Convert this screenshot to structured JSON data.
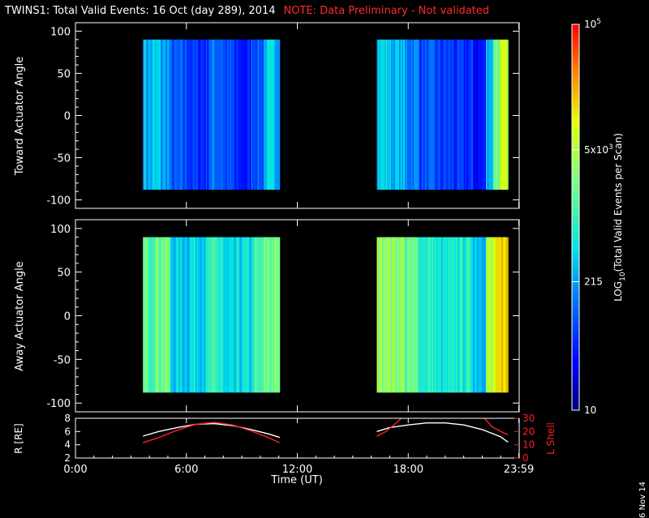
{
  "header": {
    "title": "TWINS1: Total Valid Events: 16 Oct (day 289), 2014",
    "note": "NOTE: Data Preliminary - Not validated"
  },
  "footer": {
    "date_stamp": "6 Nov 14"
  },
  "colors": {
    "background": "#000000",
    "axes": "#ffffff",
    "note": "#ff2a2a",
    "lshell": "#ff2020",
    "radius": "#ffffff"
  },
  "chart_data": [
    {
      "type": "heatmap",
      "title": "",
      "ylabel": "Toward Actuator Angle",
      "ylim": [
        -110,
        110
      ],
      "yticks": [
        100,
        50,
        0,
        -50,
        -100
      ],
      "xlim": [
        0,
        24
      ],
      "data_time_ranges": [
        [
          3.65,
          11.05
        ],
        [
          16.3,
          23.4
        ]
      ],
      "angle_range": [
        -88,
        90
      ],
      "segments": [
        {
          "t": [
            3.65,
            3.8
          ],
          "v": 2.6
        },
        {
          "t": [
            3.8,
            4.15
          ],
          "v": 2.4
        },
        {
          "t": [
            4.15,
            4.6
          ],
          "v": 2.5
        },
        {
          "t": [
            4.6,
            5.1
          ],
          "v": 2.35
        },
        {
          "t": [
            5.1,
            6.2
          ],
          "v": 1.9
        },
        {
          "t": [
            6.2,
            7.2
          ],
          "v": 1.75
        },
        {
          "t": [
            7.2,
            8.0
          ],
          "v": 2.1
        },
        {
          "t": [
            8.0,
            8.6
          ],
          "v": 1.85
        },
        {
          "t": [
            8.6,
            9.5
          ],
          "v": 1.6
        },
        {
          "t": [
            9.5,
            10.2
          ],
          "v": 2.0
        },
        {
          "t": [
            10.2,
            11.05
          ],
          "v": 2.5
        },
        {
          "t": [
            16.3,
            17.0
          ],
          "v": 2.6
        },
        {
          "t": [
            17.0,
            17.8
          ],
          "v": 2.45
        },
        {
          "t": [
            17.8,
            18.6
          ],
          "v": 2.2
        },
        {
          "t": [
            18.6,
            19.5
          ],
          "v": 1.9
        },
        {
          "t": [
            19.5,
            20.5
          ],
          "v": 1.8
        },
        {
          "t": [
            20.5,
            21.5
          ],
          "v": 1.7
        },
        {
          "t": [
            21.5,
            22.2
          ],
          "v": 1.55
        },
        {
          "t": [
            22.2,
            22.6
          ],
          "v": 2.5
        },
        {
          "t": [
            22.6,
            23.0
          ],
          "v": 3.4
        },
        {
          "t": [
            23.0,
            23.4
          ],
          "v": 3.75
        }
      ]
    },
    {
      "type": "heatmap",
      "title": "",
      "ylabel": "Away Actuator Angle",
      "ylim": [
        -110,
        110
      ],
      "yticks": [
        100,
        50,
        0,
        -50,
        -100
      ],
      "xlim": [
        0,
        24
      ],
      "data_time_ranges": [
        [
          3.65,
          11.05
        ],
        [
          16.3,
          23.4
        ]
      ],
      "angle_range": [
        -88,
        90
      ],
      "segments": [
        {
          "t": [
            3.65,
            4.2
          ],
          "v": 3.2
        },
        {
          "t": [
            4.2,
            5.1
          ],
          "v": 3.35
        },
        {
          "t": [
            5.1,
            6.2
          ],
          "v": 2.6
        },
        {
          "t": [
            6.2,
            7.2
          ],
          "v": 2.7
        },
        {
          "t": [
            7.2,
            8.0
          ],
          "v": 2.9
        },
        {
          "t": [
            8.0,
            8.7
          ],
          "v": 2.5
        },
        {
          "t": [
            8.7,
            9.6
          ],
          "v": 2.65
        },
        {
          "t": [
            9.6,
            10.2
          ],
          "v": 3.0
        },
        {
          "t": [
            10.2,
            11.05
          ],
          "v": 3.3
        },
        {
          "t": [
            16.3,
            17.0
          ],
          "v": 3.6
        },
        {
          "t": [
            17.0,
            17.8
          ],
          "v": 3.5
        },
        {
          "t": [
            17.8,
            18.6
          ],
          "v": 3.2
        },
        {
          "t": [
            18.6,
            19.5
          ],
          "v": 2.9
        },
        {
          "t": [
            19.5,
            20.5
          ],
          "v": 2.7
        },
        {
          "t": [
            20.5,
            21.5
          ],
          "v": 2.85
        },
        {
          "t": [
            21.5,
            22.2
          ],
          "v": 2.6
        },
        {
          "t": [
            22.2,
            22.6
          ],
          "v": 3.6
        },
        {
          "t": [
            22.6,
            23.0
          ],
          "v": 3.95
        },
        {
          "t": [
            23.0,
            23.4
          ],
          "v": 4.2
        }
      ]
    },
    {
      "type": "line",
      "title": "",
      "xlabel": "Time (UT)",
      "xlim": [
        0,
        24
      ],
      "xticks": [
        "0:00",
        "6:00",
        "12:00",
        "18:00",
        "23:59"
      ],
      "xtick_values": [
        0,
        6,
        12,
        18,
        23.98
      ],
      "ylabel_left": "R [RE]",
      "ylim_left": [
        2,
        8
      ],
      "yticks_left": [
        2,
        4,
        6,
        8
      ],
      "ylabel_right": "L Shell",
      "ylim_right": [
        0,
        30
      ],
      "yticks_right": [
        0,
        10,
        20,
        30
      ],
      "series": [
        {
          "axis": "left",
          "x": [
            3.65,
            4.5,
            5.5,
            6.5,
            7.5,
            8.5,
            9.5,
            10.5,
            11.05,
            16.3,
            17.0,
            18.0,
            19.0,
            20.0,
            21.0,
            22.0,
            23.0,
            23.4
          ],
          "values": [
            5.3,
            6.0,
            6.6,
            7.1,
            7.2,
            6.9,
            6.3,
            5.6,
            5.1,
            6.0,
            6.6,
            7.0,
            7.3,
            7.3,
            7.0,
            6.3,
            5.2,
            4.4
          ]
        },
        {
          "axis": "right",
          "x": [
            3.65,
            4.5,
            5.5,
            6.5,
            7.5,
            8.5,
            9.5,
            10.5,
            11.05,
            16.3,
            16.8,
            17.3,
            17.8,
            22.0,
            22.5,
            23.0,
            23.4
          ],
          "values": [
            11.5,
            15.5,
            21.0,
            25.5,
            27.0,
            25.0,
            20.5,
            15.0,
            11.5,
            16.5,
            20.0,
            26.0,
            32.0,
            32.0,
            24.0,
            20.0,
            17.5
          ]
        }
      ]
    }
  ],
  "colorbar": {
    "label_parts": [
      "LOG",
      "10",
      "(Total Valid Events per Scan)"
    ],
    "log_range": [
      1,
      5
    ],
    "ticks": [
      {
        "value": 5,
        "base": "10",
        "sup": "5"
      },
      {
        "value": 3.699,
        "base": "5x10",
        "sup": "3"
      },
      {
        "value": 2.332,
        "base": "215",
        "sup": ""
      },
      {
        "value": 1,
        "base": "10",
        "sup": ""
      }
    ]
  }
}
